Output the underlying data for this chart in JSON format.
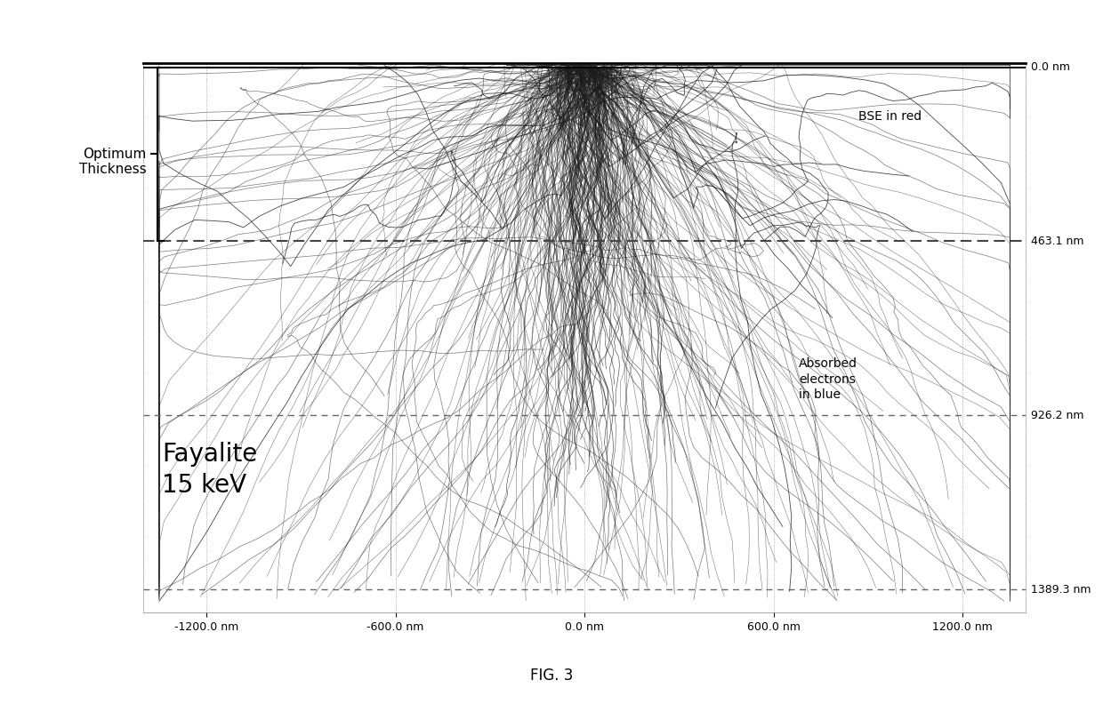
{
  "title": "FIG. 3",
  "material_label": "Fayalite\n15 keV",
  "bse_label": "BSE in red",
  "absorbed_label": "Absorbed\nelectrons\nin blue",
  "optimum_label": "Optimum\nThickness",
  "x_ticks": [
    -1200,
    -600,
    0,
    600,
    1200
  ],
  "x_tick_labels": [
    "-1200.0 nm",
    "-600.0 nm",
    "0.0 nm",
    "600.0 nm",
    "1200.0 nm"
  ],
  "y_labels": [
    "0.0 nm",
    "463.1 nm",
    "926.2 nm",
    "1389.3 nm"
  ],
  "y_values": [
    0,
    463.1,
    926.2,
    1389.3
  ],
  "xlim": [
    -1400,
    1400
  ],
  "ylim": [
    -1450,
    10
  ],
  "bg_color": "#ffffff",
  "seed": 42,
  "n_bse_tracks": 30,
  "n_absorbed_tracks": 70
}
